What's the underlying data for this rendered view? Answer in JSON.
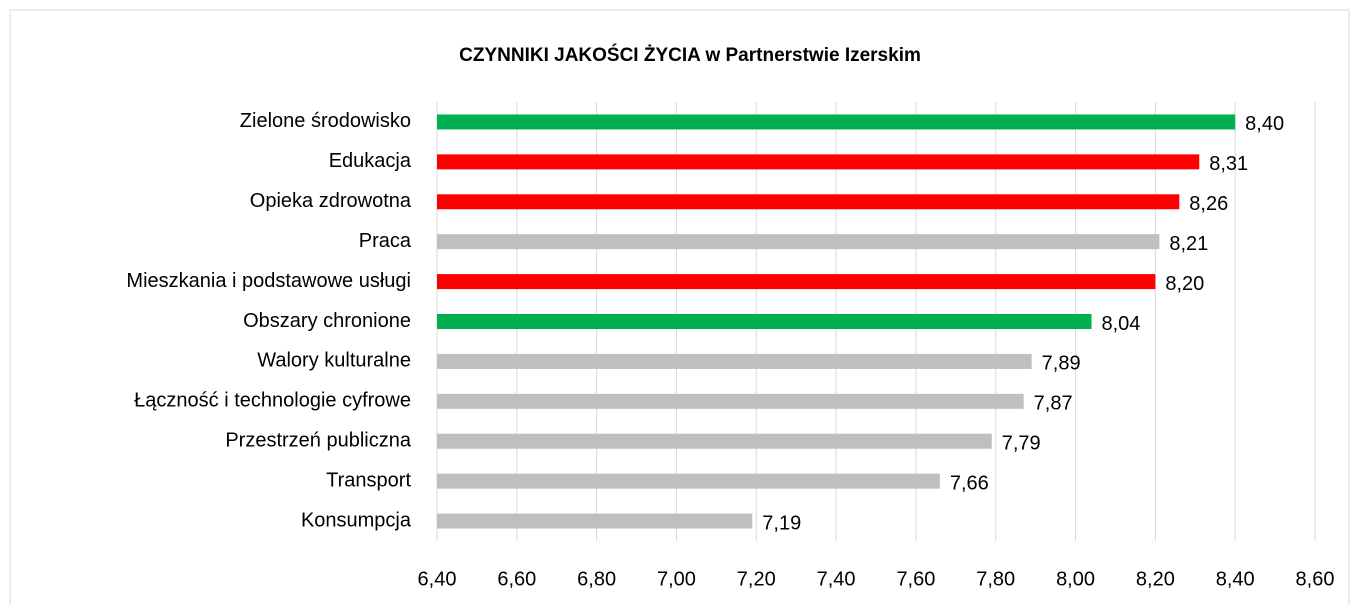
{
  "chart_data": {
    "type": "hbar",
    "title": "CZYNNIKI JAKOŚCI ŻYCIA w Partnerstwie Izerskim",
    "categories": [
      "Zielone środowisko",
      "Edukacja",
      "Opieka zdrowotna",
      "Praca",
      "Mieszkania i podstawowe usługi",
      "Obszary chronione",
      "Walory kulturalne",
      "Łączność i technologie cyfrowe",
      "Przestrzeń publiczna",
      "Transport",
      "Konsumpcja"
    ],
    "values": [
      8.4,
      8.31,
      8.26,
      8.21,
      8.2,
      8.04,
      7.89,
      7.87,
      7.79,
      7.66,
      7.19
    ],
    "value_labels": [
      "8,40",
      "8,31",
      "8,26",
      "8,21",
      "8,20",
      "8,04",
      "7,89",
      "7,87",
      "7,79",
      "7,66",
      "7,19"
    ],
    "colors": [
      "#00b050",
      "#ff0000",
      "#ff0000",
      "#bfbfbf",
      "#ff0000",
      "#00b050",
      "#bfbfbf",
      "#bfbfbf",
      "#bfbfbf",
      "#bfbfbf",
      "#bfbfbf"
    ],
    "xlim": [
      6.4,
      8.6
    ],
    "xticks": [
      {
        "value": 6.4,
        "label": "6,40"
      },
      {
        "value": 6.6,
        "label": "6,60"
      },
      {
        "value": 6.8,
        "label": "6,80"
      },
      {
        "value": 7.0,
        "label": "7,00"
      },
      {
        "value": 7.2,
        "label": "7,20"
      },
      {
        "value": 7.4,
        "label": "7,40"
      },
      {
        "value": 7.6,
        "label": "7,60"
      },
      {
        "value": 7.8,
        "label": "7,80"
      },
      {
        "value": 8.0,
        "label": "8,00"
      },
      {
        "value": 8.2,
        "label": "8,20"
      },
      {
        "value": 8.4,
        "label": "8,40"
      },
      {
        "value": 8.6,
        "label": "8,60"
      }
    ],
    "grid": true
  }
}
